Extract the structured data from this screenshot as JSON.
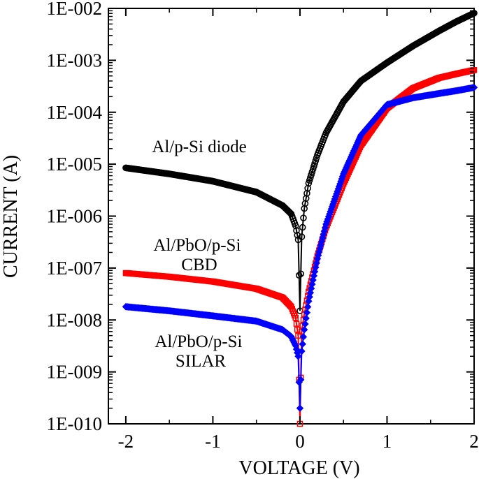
{
  "chart_data": {
    "type": "scatter",
    "xlabel": "VOLTAGE (V)",
    "ylabel": "CURRENT (A)",
    "xlim": [
      -2.2,
      2
    ],
    "ylim": [
      1e-10,
      0.01
    ],
    "yscale": "log",
    "grid": false,
    "legend": "none",
    "x_ticks": [
      -2,
      -1,
      0,
      1,
      2
    ],
    "x_tick_labels": [
      "-2",
      "-1",
      "0",
      "1",
      "2"
    ],
    "y_ticks": [
      1e-10,
      1e-09,
      1e-08,
      1e-07,
      1e-06,
      1e-05,
      0.0001,
      0.001,
      0.01
    ],
    "y_tick_labels": [
      "1E-010",
      "1E-009",
      "1E-008",
      "1E-007",
      "1E-006",
      "1E-005",
      "1E-004",
      "1E-003",
      "1E-002"
    ],
    "annotations": [
      {
        "id": "diode",
        "lines": [
          "Al/p-Si diode"
        ]
      },
      {
        "id": "cbd",
        "lines": [
          "Al/PbO/p-Si",
          "CBD"
        ]
      },
      {
        "id": "silar",
        "lines": [
          "Al/PbO/p-Si",
          "SILAR"
        ]
      }
    ],
    "series": [
      {
        "id": "diode",
        "color": "#000000",
        "marker": "circle",
        "x": [
          -2.0,
          -1.5,
          -1.0,
          -0.5,
          -0.2,
          -0.1,
          -0.05,
          -0.02,
          0.0,
          0.02,
          0.05,
          0.1,
          0.2,
          0.3,
          0.5,
          0.7,
          1.0,
          1.3,
          1.6,
          1.8,
          2.0
        ],
        "y": [
          8.5e-06,
          6.5e-06,
          4.7e-06,
          2.9e-06,
          1.6e-06,
          1.1e-06,
          6.5e-07,
          3.5e-07,
          1.5e-08,
          4e-07,
          1.4e-06,
          4.3e-06,
          1.5e-05,
          4e-05,
          0.00016,
          0.0004,
          0.0009,
          0.0019,
          0.0037,
          0.0056,
          0.0081
        ]
      },
      {
        "id": "cbd",
        "color": "#ff0000",
        "marker": "square",
        "x": [
          -2.0,
          -1.5,
          -1.0,
          -0.5,
          -0.2,
          -0.1,
          -0.05,
          -0.02,
          0.0,
          0.02,
          0.05,
          0.1,
          0.2,
          0.3,
          0.5,
          0.7,
          1.0,
          1.3,
          1.6,
          1.8,
          2.0
        ],
        "y": [
          8e-08,
          6.8e-08,
          5.5e-08,
          4e-08,
          2.7e-08,
          1.8e-08,
          1.1e-08,
          5e-09,
          1e-10,
          6e-09,
          1.3e-08,
          3.5e-08,
          1.7e-07,
          6e-07,
          4.2e-06,
          2.3e-05,
          0.00012,
          0.00029,
          0.00046,
          0.00055,
          0.00065
        ]
      },
      {
        "id": "silar",
        "color": "#0000ff",
        "marker": "diamond",
        "x": [
          -2.0,
          -1.5,
          -1.0,
          -0.5,
          -0.2,
          -0.1,
          -0.05,
          -0.02,
          0.0,
          0.02,
          0.05,
          0.1,
          0.2,
          0.3,
          0.5,
          0.7,
          1.0,
          1.3,
          1.6,
          1.8,
          2.0
        ],
        "y": [
          1.8e-08,
          1.5e-08,
          1.2e-08,
          9.5e-09,
          6.5e-09,
          4.8e-09,
          3.2e-09,
          2e-09,
          2e-10,
          2.5e-09,
          6.5e-09,
          2.3e-08,
          1.5e-07,
          7e-07,
          6.5e-06,
          3.6e-05,
          0.00014,
          0.00019,
          0.00023,
          0.00026,
          0.0003
        ]
      }
    ]
  }
}
